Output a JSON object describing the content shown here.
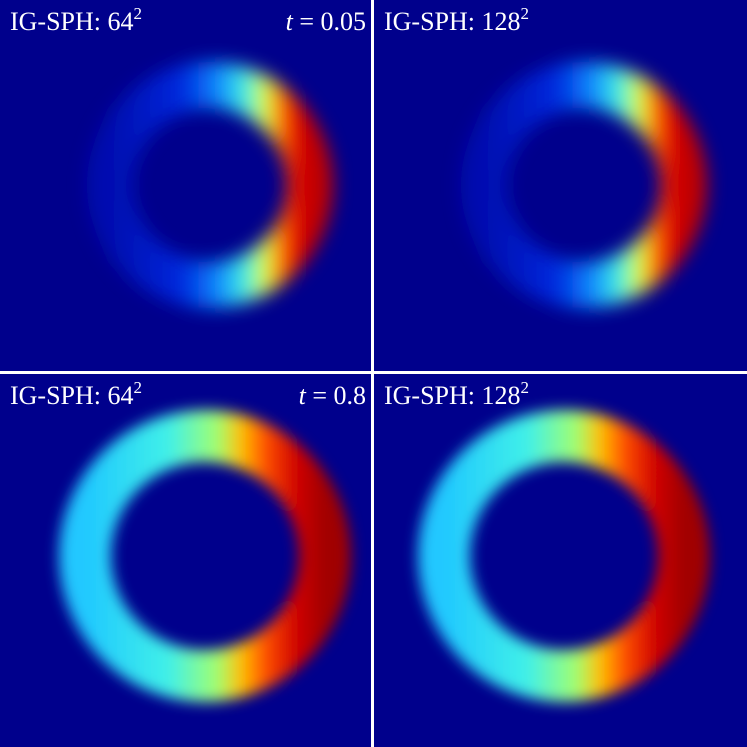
{
  "panels": [
    {
      "label": "IG-SPH: 64",
      "exponent": "2",
      "time_symbol": "t",
      "time_value": "= 0.05"
    },
    {
      "label": "IG-SPH: 128",
      "exponent": "2"
    },
    {
      "label": "IG-SPH: 64",
      "exponent": "2",
      "time_symbol": "t",
      "time_value": "= 0.8"
    },
    {
      "label": "IG-SPH: 128",
      "exponent": "2"
    }
  ]
}
